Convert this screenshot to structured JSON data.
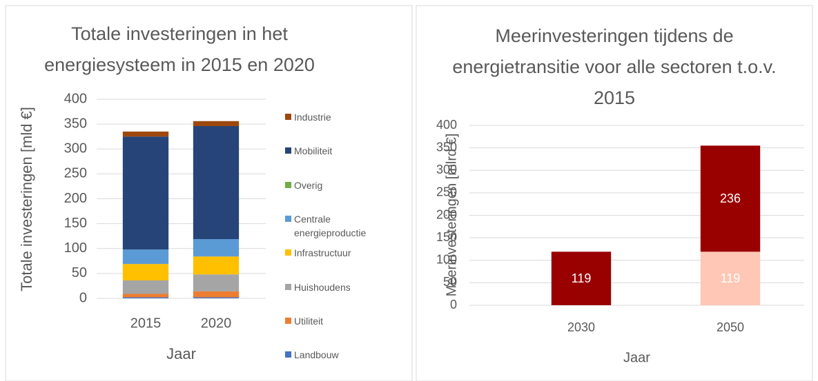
{
  "chart_data": [
    {
      "type": "bar",
      "stacked": true,
      "title": "Totale investeringen in het energiesysteem in 2015 en 2020",
      "x_label": "Jaar",
      "y_label": "Totale investeringen [mld €]",
      "categories": [
        "2015",
        "2020"
      ],
      "series": [
        {
          "name": "Landbouw",
          "color": "#4472c4",
          "values": [
            2,
            2
          ]
        },
        {
          "name": "Utiliteit",
          "color": "#ed7d31",
          "values": [
            7,
            12
          ]
        },
        {
          "name": "Huishoudens",
          "color": "#a5a5a5",
          "values": [
            27,
            34
          ]
        },
        {
          "name": "Infrastructuur",
          "color": "#ffc000",
          "values": [
            33,
            36
          ]
        },
        {
          "name": "Centrale energieproductie",
          "color": "#5b9bd5",
          "values": [
            29,
            35
          ]
        },
        {
          "name": "Overig",
          "color": "#70ad47",
          "values": [
            0,
            0
          ]
        },
        {
          "name": "Mobiliteit",
          "color": "#264478",
          "values": [
            227,
            227
          ]
        },
        {
          "name": "Industrie",
          "color": "#9e480e",
          "values": [
            10,
            10
          ]
        }
      ],
      "ylim": [
        0,
        400
      ],
      "yticks": [
        0,
        50,
        100,
        150,
        200,
        250,
        300,
        350,
        400
      ],
      "grid": true,
      "legend": "right"
    },
    {
      "type": "bar",
      "stacked": true,
      "title": "Meerinvesteringen tijdens de energietransitie voor alle sectoren t.o.v. 2015",
      "x_label": "Jaar",
      "y_label": "Meerinvesteringen [mlrd €]",
      "categories": [
        "2030",
        "2050"
      ],
      "series": [
        {
          "color": "#ffc7b5",
          "values": [
            null,
            119
          ]
        },
        {
          "color": "#990000",
          "values": [
            119,
            236
          ]
        }
      ],
      "data_labels": true,
      "ylim": [
        0,
        400
      ],
      "yticks": [
        0,
        50,
        100,
        150,
        200,
        250,
        300,
        350,
        400
      ],
      "grid": true
    }
  ]
}
